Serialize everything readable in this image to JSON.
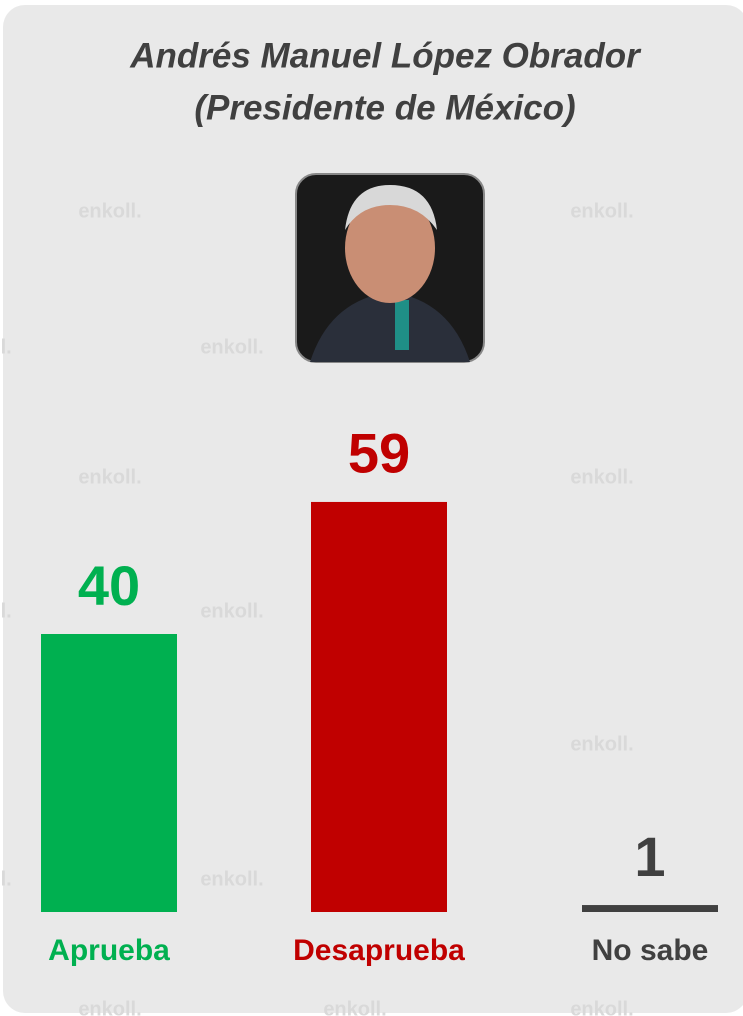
{
  "chart_data": {
    "type": "bar",
    "title": [
      "Andrés Manuel López Obrador",
      "(Presidente de México)"
    ],
    "watermark": "enkoll.",
    "categories": [
      "Aprueba",
      "Desaprueba",
      "No sabe"
    ],
    "values": [
      40,
      59,
      1
    ],
    "colors": [
      "#00b050",
      "#c00000",
      "#404040"
    ],
    "ylim": [
      0,
      60
    ]
  }
}
